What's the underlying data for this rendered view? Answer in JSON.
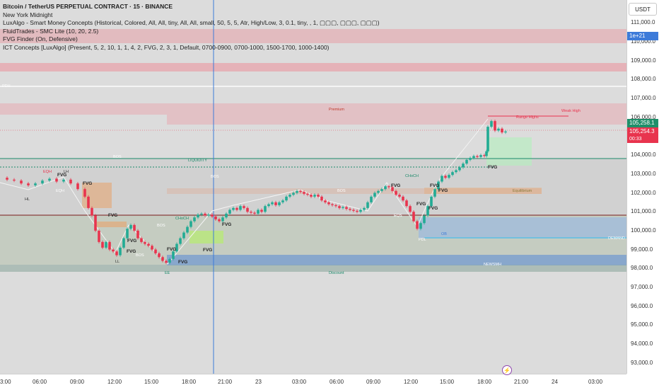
{
  "legend": {
    "title": "Bitcoin / TetherUS PERPETUAL CONTRACT · 15 · BINANCE",
    "lines": [
      "New York Midnight",
      "LuxAlgo - Smart Money Concepts (Historical, Colored, All, All, tiny, All, All, small, 50, 5, 5, Atr, High/Low, 3, 0.1, tiny, , 1, ▢▢▢, ▢▢▢, ▢▢▢)",
      "FluidTrades - SMC Lite (10, 20, 2.5)",
      "FVG Finder (On, Defensive)",
      "ICT Concepts [LuxAlgo] (Present, 5, 2, 10, 1, 1, 4, 2, FVG, 2, 3, 1, Default, 0700-0900, 0700-1000, 1500-1700, 1000-1400)"
    ]
  },
  "currency_button": "USDT",
  "price_axis": {
    "ticks": [
      "111,000.0",
      "110,000.0",
      "109,000.0",
      "108,000.0",
      "107,000.0",
      "106,000.0",
      "104,000.0",
      "103,000.0",
      "102,000.0",
      "101,000.0",
      "100,000.0",
      "99,000.0",
      "98,000.0",
      "97,000.0",
      "96,000.0",
      "95,000.0",
      "94,000.0",
      "93,000.0"
    ],
    "tag_e": "1e+21",
    "tag_green": "105,258.1",
    "tag_red": "105,254.3",
    "tag_timer": "00:33"
  },
  "time_axis": {
    "labels": [
      "3:00",
      "06:00",
      "09:00",
      "12:00",
      "15:00",
      "18:00",
      "21:00",
      "23",
      "03:00",
      "06:00",
      "09:00",
      "12:00",
      "15:00",
      "18:00",
      "21:00",
      "24",
      "03:00"
    ]
  },
  "zones": {
    "premium": "Premium",
    "equilibrium": "Equilibrium",
    "discount": "Discount",
    "demand": "DEMAND",
    "liquidity": "LIQUIDITY",
    "weak_high": "Weak High",
    "range": "Range Highs",
    "newsmh": "NEWSMH",
    "pdl": "PDL",
    "pdh": "PDH"
  },
  "markers": {
    "fvg": "FVG",
    "bos": "BOS",
    "choch": "CHoCH",
    "ll": "LL",
    "eqh": "EQH",
    "eqs": "EQS",
    "eqh_lower": "EQH",
    "hl": "HL",
    "lh": "LH",
    "ee": "EE",
    "ob": "OB"
  },
  "colors": {
    "up": "#22ab94",
    "down": "#e8344e",
    "premium_zone": "#e8a0a8",
    "discount_zone": "#8fb4e8",
    "fvg_orange": "#e8a26a",
    "fvg_green": "#b8e878",
    "accent_blue": "#3d7bd9"
  },
  "chart_data": {
    "type": "candlestick",
    "timeframe": "15",
    "symbol": "BTCUSDT.P",
    "ylim": [
      92500,
      111500
    ],
    "last_price": 105254.3,
    "path": [
      [
        0,
        102800
      ],
      [
        10,
        102700
      ],
      [
        20,
        102650
      ],
      [
        30,
        102500
      ],
      [
        40,
        102400
      ],
      [
        50,
        102500
      ],
      [
        60,
        102650
      ],
      [
        70,
        102750
      ],
      [
        80,
        102600
      ],
      [
        90,
        102700
      ],
      [
        100,
        102500
      ],
      [
        110,
        102200
      ],
      [
        120,
        101800
      ],
      [
        125,
        101200
      ],
      [
        130,
        100800
      ],
      [
        135,
        100000
      ],
      [
        140,
        99400
      ],
      [
        145,
        99100
      ],
      [
        150,
        99400
      ],
      [
        155,
        99000
      ],
      [
        160,
        98900
      ],
      [
        165,
        98700
      ],
      [
        170,
        99100
      ],
      [
        175,
        99600
      ],
      [
        180,
        100100
      ],
      [
        185,
        100300
      ],
      [
        190,
        100000
      ],
      [
        195,
        99600
      ],
      [
        200,
        99400
      ],
      [
        205,
        99300
      ],
      [
        210,
        99200
      ],
      [
        215,
        99000
      ],
      [
        220,
        98800
      ],
      [
        225,
        98600
      ],
      [
        230,
        98400
      ],
      [
        235,
        98300
      ],
      [
        240,
        98500
      ],
      [
        245,
        98900
      ],
      [
        250,
        99300
      ],
      [
        255,
        99600
      ],
      [
        260,
        99900
      ],
      [
        265,
        100200
      ],
      [
        270,
        100500
      ],
      [
        275,
        100700
      ],
      [
        280,
        100850
      ],
      [
        285,
        100900
      ],
      [
        290,
        100800
      ],
      [
        295,
        100850
      ],
      [
        300,
        100750
      ],
      [
        305,
        100600
      ],
      [
        310,
        100500
      ],
      [
        315,
        100700
      ],
      [
        320,
        100900
      ],
      [
        325,
        101100
      ],
      [
        330,
        101200
      ],
      [
        335,
        101100
      ],
      [
        340,
        101300
      ],
      [
        345,
        101200
      ],
      [
        350,
        101000
      ],
      [
        355,
        100950
      ],
      [
        360,
        100900
      ],
      [
        365,
        101100
      ],
      [
        370,
        101000
      ],
      [
        375,
        101300
      ],
      [
        380,
        101400
      ],
      [
        385,
        101500
      ],
      [
        390,
        101350
      ],
      [
        395,
        101500
      ],
      [
        400,
        101600
      ],
      [
        405,
        101800
      ],
      [
        410,
        101900
      ],
      [
        415,
        102000
      ],
      [
        420,
        102100
      ],
      [
        425,
        102050
      ],
      [
        430,
        101950
      ],
      [
        435,
        101900
      ],
      [
        440,
        101800
      ],
      [
        445,
        101900
      ],
      [
        450,
        101800
      ],
      [
        455,
        101600
      ],
      [
        460,
        101500
      ],
      [
        465,
        101400
      ],
      [
        470,
        101350
      ],
      [
        475,
        101300
      ],
      [
        480,
        101200
      ],
      [
        485,
        101250
      ],
      [
        490,
        101150
      ],
      [
        495,
        101100
      ],
      [
        500,
        101050
      ],
      [
        505,
        101000
      ],
      [
        510,
        101100
      ],
      [
        515,
        101200
      ],
      [
        520,
        101500
      ],
      [
        525,
        101800
      ],
      [
        530,
        102000
      ],
      [
        535,
        102100
      ],
      [
        540,
        102200
      ],
      [
        545,
        102350
      ],
      [
        550,
        102300
      ],
      [
        555,
        102100
      ],
      [
        560,
        101900
      ],
      [
        565,
        101800
      ],
      [
        570,
        101600
      ],
      [
        575,
        101300
      ],
      [
        580,
        101000
      ],
      [
        585,
        100500
      ],
      [
        590,
        100100
      ],
      [
        595,
        100400
      ],
      [
        600,
        100800
      ],
      [
        605,
        101300
      ],
      [
        610,
        101800
      ],
      [
        615,
        102200
      ],
      [
        620,
        102600
      ],
      [
        625,
        102900
      ],
      [
        630,
        102800
      ],
      [
        635,
        102950
      ],
      [
        640,
        103100
      ],
      [
        645,
        103200
      ],
      [
        650,
        103350
      ],
      [
        655,
        103550
      ],
      [
        660,
        103750
      ],
      [
        665,
        103850
      ],
      [
        670,
        103950
      ],
      [
        675,
        103900
      ],
      [
        680,
        104000
      ],
      [
        685,
        103950
      ],
      [
        688,
        104200
      ],
      [
        690,
        105500
      ],
      [
        695,
        105800
      ],
      [
        700,
        105300
      ],
      [
        705,
        105400
      ],
      [
        710,
        105200
      ],
      [
        715,
        105250
      ]
    ]
  }
}
